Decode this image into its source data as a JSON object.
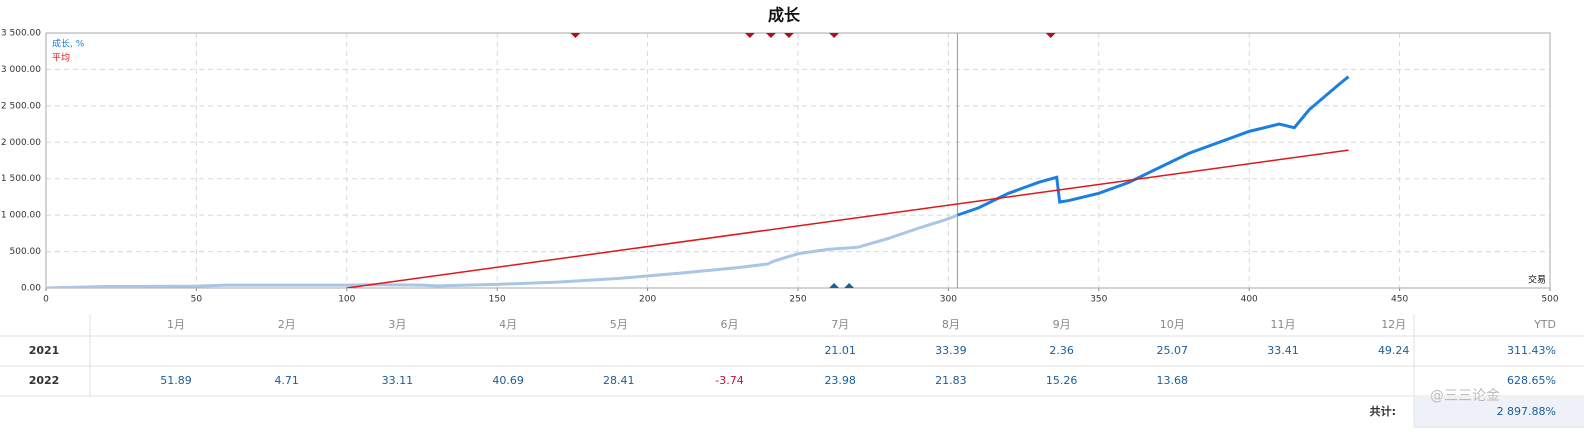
{
  "chart_data": {
    "type": "line",
    "title": "成长",
    "x_label": "交易",
    "xlim": [
      0,
      500
    ],
    "xticks": [
      0,
      50,
      100,
      150,
      200,
      250,
      300,
      350,
      400,
      450,
      500
    ],
    "ylim": [
      0,
      3500
    ],
    "yticks": [
      {
        "value": 0,
        "label": "0.00"
      },
      {
        "value": 500,
        "label": "500.00"
      },
      {
        "value": 1000,
        "label": "1 000.00"
      },
      {
        "value": 1500,
        "label": "1 500.00"
      },
      {
        "value": 2000,
        "label": "2 000.00"
      },
      {
        "value": 2500,
        "label": "2 500.00"
      },
      {
        "value": 3000,
        "label": "3 000.00"
      },
      {
        "value": 3500,
        "label": "3 500.00"
      }
    ],
    "grid": true,
    "split_x": 303,
    "series": [
      {
        "name": "成长, %",
        "color": "#1a7fe0",
        "history_color": "#a9c6e4",
        "x": [
          0,
          10,
          20,
          50,
          60,
          80,
          100,
          110,
          125,
          130,
          150,
          170,
          190,
          210,
          230,
          240,
          242,
          250,
          260,
          270,
          280,
          290,
          300,
          303,
          310,
          320,
          330,
          336,
          337,
          340,
          350,
          360,
          370,
          380,
          390,
          400,
          410,
          415,
          420,
          430,
          433
        ],
        "values": [
          0,
          10,
          20,
          25,
          40,
          40,
          40,
          45,
          40,
          30,
          50,
          80,
          130,
          200,
          280,
          330,
          370,
          470,
          530,
          560,
          680,
          820,
          950,
          1000,
          1100,
          1300,
          1450,
          1520,
          1180,
          1200,
          1300,
          1450,
          1650,
          1850,
          2000,
          2150,
          2250,
          2200,
          2450,
          2800,
          2900
        ]
      },
      {
        "name": "平均",
        "color": "#e0161b",
        "x": [
          100,
          433
        ],
        "values": [
          0,
          1893
        ]
      }
    ],
    "top_markers": {
      "color": "#b0101a",
      "x": [
        176,
        234,
        241,
        247,
        262,
        334
      ]
    },
    "bottom_markers": {
      "color": "#1a5e9a",
      "x": [
        262,
        267
      ]
    }
  },
  "table": {
    "columns": [
      "1月",
      "2月",
      "3月",
      "4月",
      "5月",
      "6月",
      "7月",
      "8月",
      "9月",
      "10月",
      "11月",
      "12月",
      "YTD"
    ],
    "rows": [
      {
        "year": "2021",
        "values": [
          null,
          null,
          null,
          null,
          null,
          null,
          21.01,
          33.39,
          2.36,
          25.07,
          33.41,
          49.24
        ],
        "ytd": "311.43%"
      },
      {
        "year": "2022",
        "values": [
          51.89,
          4.71,
          33.11,
          40.69,
          28.41,
          -3.74,
          23.98,
          21.83,
          15.26,
          13.68,
          null,
          null
        ],
        "ytd": "628.65%"
      }
    ],
    "total_label": "共计:",
    "total": "2 897.88%"
  },
  "watermark": "@三三论金"
}
